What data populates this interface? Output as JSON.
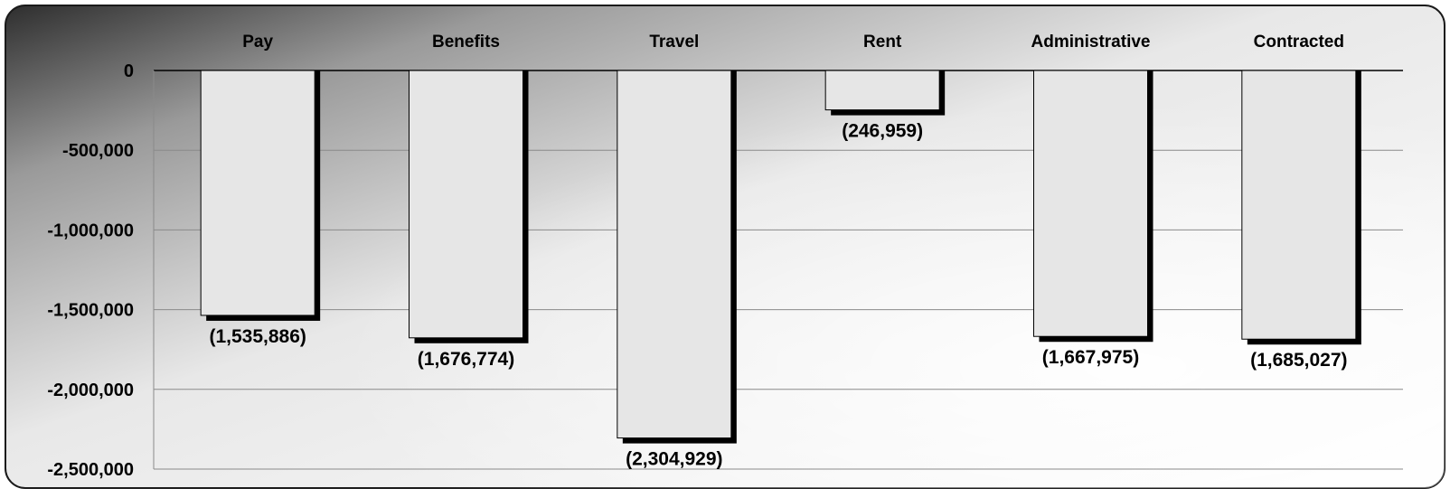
{
  "chart_data": {
    "type": "bar",
    "categories": [
      "Pay",
      "Benefits",
      "Travel",
      "Rent",
      "Administrative",
      "Contracted"
    ],
    "values": [
      -1535886,
      -1676774,
      -2304929,
      -246959,
      -1667975,
      -1685027
    ],
    "data_labels": [
      "(1,535,886)",
      "(1,676,774)",
      "(2,304,929)",
      "(246,959)",
      "(1,667,975)",
      "(1,685,027)"
    ],
    "y_ticks": [
      0,
      -500000,
      -1000000,
      -1500000,
      -2000000,
      -2500000
    ],
    "y_tick_labels": [
      "0",
      "-500,000",
      "-1,000,000",
      "-1,500,000",
      "-2,000,000",
      "-2,500,000"
    ],
    "ylim": [
      -2500000,
      0
    ],
    "category_axis_position": "top",
    "grid": true,
    "legend": "none",
    "bar_color": "#e6e6e6",
    "bar_shadow_color": "#000000",
    "background_gradient": [
      "#2e2e2e",
      "#9a9a9a",
      "#e8e8e8",
      "#ffffff"
    ]
  }
}
